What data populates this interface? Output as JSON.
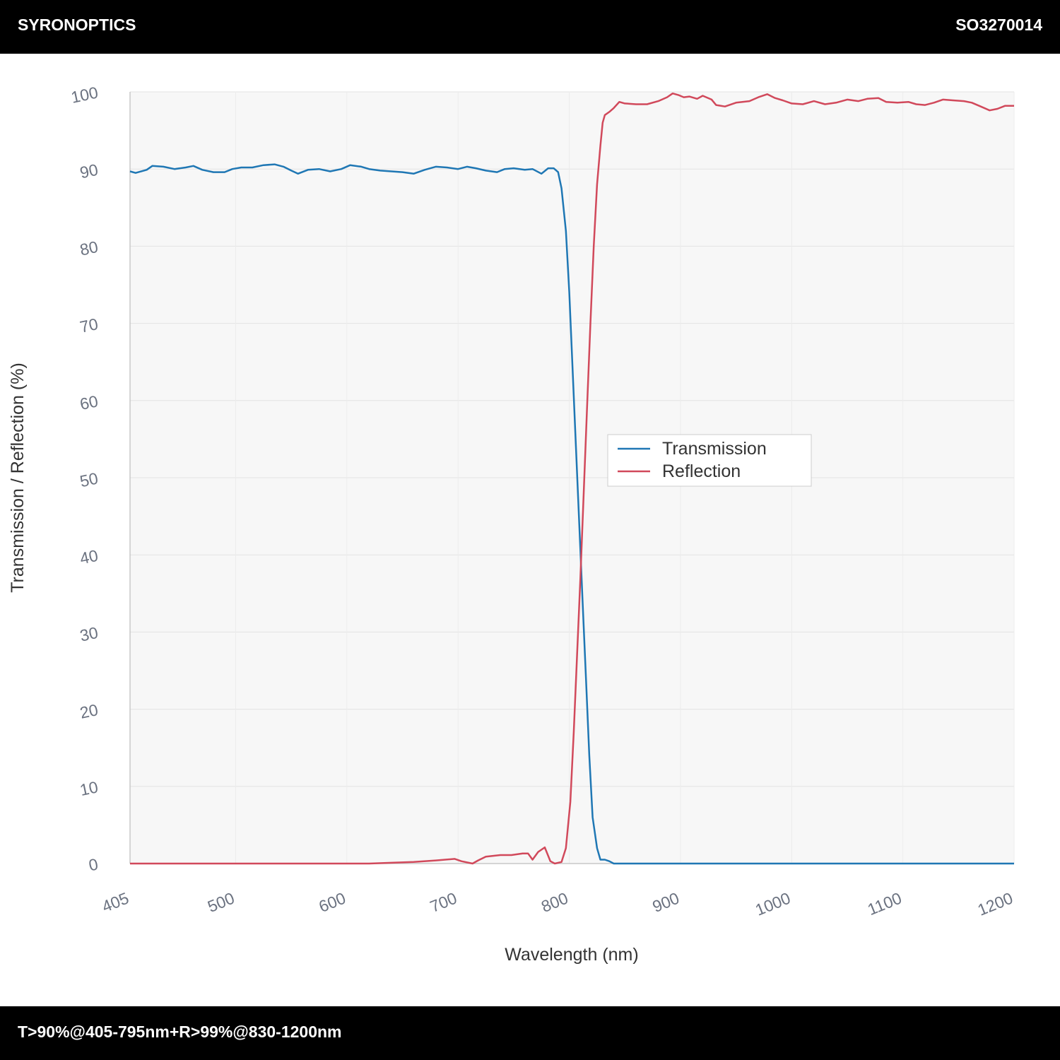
{
  "header": {
    "brand": "SYRONOPTICS",
    "code": "SO3270014"
  },
  "footer": {
    "spec": "T>90%@405-795nm+R>99%@830-1200nm"
  },
  "chart_data": {
    "type": "line",
    "xlabel": "Wavelength (nm)",
    "ylabel": "Transmission / Reflection (%)",
    "xlim": [
      405,
      1200
    ],
    "ylim": [
      0,
      100
    ],
    "x_ticks": [
      405,
      500,
      600,
      700,
      800,
      900,
      1000,
      1100,
      1200
    ],
    "y_ticks": [
      0,
      10,
      20,
      30,
      40,
      50,
      60,
      70,
      80,
      90,
      100
    ],
    "grid": true,
    "legend_position": "center-right",
    "series": [
      {
        "name": "Transmission",
        "color": "#1f77b4",
        "points": [
          [
            405,
            89.7
          ],
          [
            410,
            89.5
          ],
          [
            420,
            89.9
          ],
          [
            425,
            90.4
          ],
          [
            435,
            90.3
          ],
          [
            445,
            90.0
          ],
          [
            455,
            90.2
          ],
          [
            462,
            90.4
          ],
          [
            470,
            89.9
          ],
          [
            480,
            89.6
          ],
          [
            490,
            89.6
          ],
          [
            497,
            90.0
          ],
          [
            505,
            90.2
          ],
          [
            515,
            90.2
          ],
          [
            525,
            90.5
          ],
          [
            535,
            90.6
          ],
          [
            543,
            90.3
          ],
          [
            550,
            89.8
          ],
          [
            556,
            89.4
          ],
          [
            565,
            89.9
          ],
          [
            575,
            90.0
          ],
          [
            585,
            89.7
          ],
          [
            595,
            90.0
          ],
          [
            603,
            90.5
          ],
          [
            613,
            90.3
          ],
          [
            620,
            90.0
          ],
          [
            630,
            89.8
          ],
          [
            640,
            89.7
          ],
          [
            650,
            89.6
          ],
          [
            660,
            89.4
          ],
          [
            670,
            89.9
          ],
          [
            680,
            90.3
          ],
          [
            690,
            90.2
          ],
          [
            700,
            90.0
          ],
          [
            708,
            90.3
          ],
          [
            716,
            90.1
          ],
          [
            725,
            89.8
          ],
          [
            735,
            89.6
          ],
          [
            742,
            90.0
          ],
          [
            750,
            90.1
          ],
          [
            760,
            89.9
          ],
          [
            767,
            90.0
          ],
          [
            775,
            89.4
          ],
          [
            781,
            90.1
          ],
          [
            786,
            90.1
          ],
          [
            790,
            89.6
          ],
          [
            793,
            87.5
          ],
          [
            797,
            82.0
          ],
          [
            800,
            74.0
          ],
          [
            803,
            64.0
          ],
          [
            806,
            54.0
          ],
          [
            809,
            44.0
          ],
          [
            812,
            34.0
          ],
          [
            815,
            24.0
          ],
          [
            818,
            14.0
          ],
          [
            821,
            6.0
          ],
          [
            825,
            2.0
          ],
          [
            828,
            0.5
          ],
          [
            832,
            0.5
          ],
          [
            836,
            0.3
          ],
          [
            840,
            0.0
          ],
          [
            860,
            0.0
          ],
          [
            900,
            0.0
          ],
          [
            1000,
            0.0
          ],
          [
            1100,
            0.0
          ],
          [
            1200,
            0.0
          ]
        ]
      },
      {
        "name": "Reflection",
        "color": "#d1495b",
        "points": [
          [
            405,
            0.0
          ],
          [
            500,
            0.0
          ],
          [
            620,
            0.0
          ],
          [
            640,
            0.1
          ],
          [
            660,
            0.2
          ],
          [
            680,
            0.4
          ],
          [
            697,
            0.6
          ],
          [
            703,
            0.3
          ],
          [
            713,
            0.0
          ],
          [
            718,
            0.4
          ],
          [
            725,
            0.9
          ],
          [
            738,
            1.1
          ],
          [
            748,
            1.1
          ],
          [
            758,
            1.3
          ],
          [
            763,
            1.3
          ],
          [
            767,
            0.5
          ],
          [
            772,
            1.5
          ],
          [
            778,
            2.1
          ],
          [
            783,
            0.3
          ],
          [
            787,
            0.0
          ],
          [
            793,
            0.2
          ],
          [
            797,
            2.0
          ],
          [
            801,
            8.0
          ],
          [
            804,
            17.0
          ],
          [
            807,
            27.0
          ],
          [
            810,
            37.0
          ],
          [
            813,
            48.0
          ],
          [
            816,
            59.0
          ],
          [
            819,
            70.0
          ],
          [
            822,
            80.0
          ],
          [
            825,
            88.0
          ],
          [
            828,
            93.0
          ],
          [
            830,
            96.0
          ],
          [
            832,
            97.0
          ],
          [
            836,
            97.4
          ],
          [
            840,
            97.9
          ],
          [
            845,
            98.7
          ],
          [
            850,
            98.5
          ],
          [
            860,
            98.4
          ],
          [
            870,
            98.4
          ],
          [
            880,
            98.8
          ],
          [
            888,
            99.3
          ],
          [
            893,
            99.8
          ],
          [
            898,
            99.6
          ],
          [
            903,
            99.3
          ],
          [
            908,
            99.4
          ],
          [
            915,
            99.1
          ],
          [
            920,
            99.5
          ],
          [
            928,
            99.0
          ],
          [
            932,
            98.3
          ],
          [
            940,
            98.1
          ],
          [
            950,
            98.6
          ],
          [
            962,
            98.8
          ],
          [
            970,
            99.3
          ],
          [
            978,
            99.7
          ],
          [
            985,
            99.2
          ],
          [
            992,
            98.9
          ],
          [
            1000,
            98.5
          ],
          [
            1010,
            98.4
          ],
          [
            1020,
            98.8
          ],
          [
            1030,
            98.4
          ],
          [
            1040,
            98.6
          ],
          [
            1050,
            99.0
          ],
          [
            1060,
            98.8
          ],
          [
            1068,
            99.1
          ],
          [
            1078,
            99.2
          ],
          [
            1085,
            98.7
          ],
          [
            1095,
            98.6
          ],
          [
            1105,
            98.7
          ],
          [
            1112,
            98.4
          ],
          [
            1120,
            98.3
          ],
          [
            1128,
            98.6
          ],
          [
            1136,
            99.0
          ],
          [
            1145,
            98.9
          ],
          [
            1155,
            98.8
          ],
          [
            1162,
            98.6
          ],
          [
            1170,
            98.1
          ],
          [
            1178,
            97.6
          ],
          [
            1185,
            97.8
          ],
          [
            1192,
            98.2
          ],
          [
            1200,
            98.2
          ]
        ]
      }
    ]
  }
}
